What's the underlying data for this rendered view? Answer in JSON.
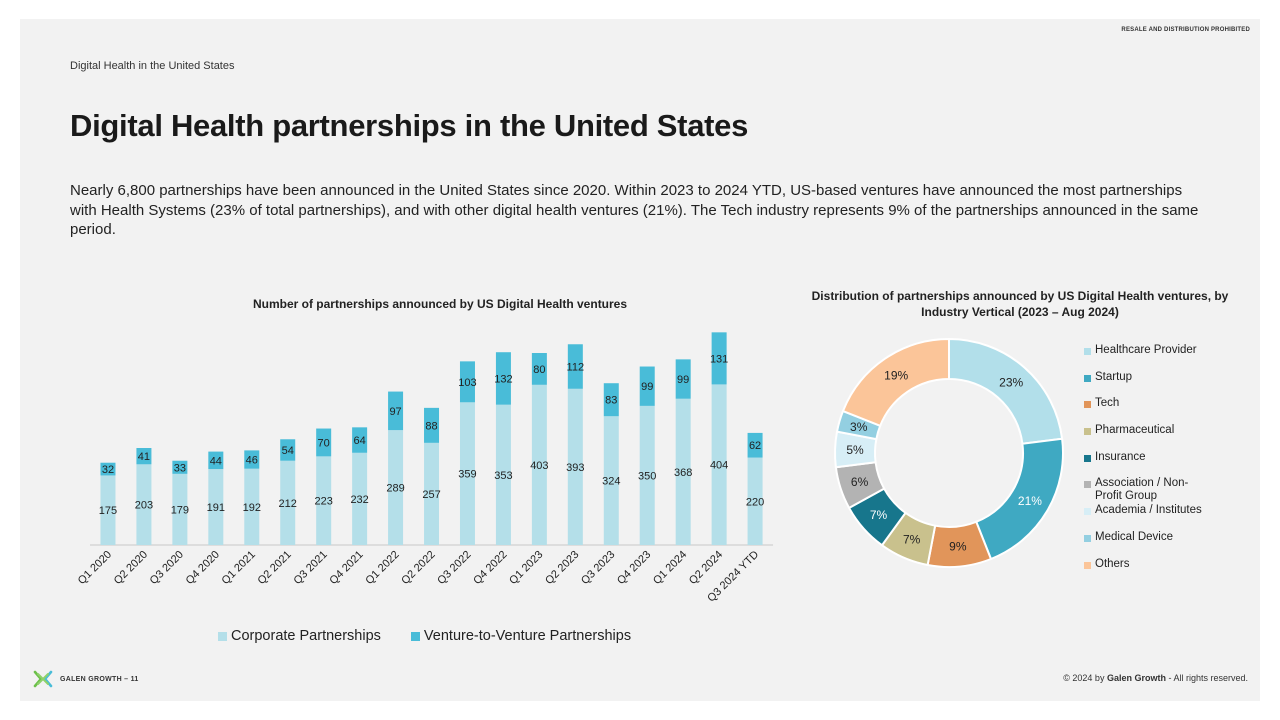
{
  "header": {
    "notice": "RESALE AND DISTRIBUTION PROHIBITED",
    "section": "Digital Health in the United States",
    "title": "Digital Health partnerships in the United States",
    "description": "Nearly 6,800 partnerships have been announced in the United States since 2020. Within 2023 to 2024 YTD, US-based ventures have announced the most partnerships with Health Systems (23% of total partnerships), and with other digital health ventures (21%). The Tech industry represents 9% of the partnerships announced in the same period."
  },
  "chart_data": [
    {
      "type": "bar",
      "stacked": true,
      "title": "Number of partnerships announced by US Digital Health ventures",
      "categories": [
        "Q1 2020",
        "Q2 2020",
        "Q3 2020",
        "Q4 2020",
        "Q1 2021",
        "Q2 2021",
        "Q3 2021",
        "Q4 2021",
        "Q1 2022",
        "Q2 2022",
        "Q3 2022",
        "Q4 2022",
        "Q1 2023",
        "Q2 2023",
        "Q3 2023",
        "Q4 2023",
        "Q1 2024",
        "Q2 2024",
        "Q3 2024 YTD"
      ],
      "series": [
        {
          "name": "Corporate Partnerships",
          "color": "#b4dfe9",
          "values": [
            175,
            203,
            179,
            191,
            192,
            212,
            223,
            232,
            289,
            257,
            359,
            353,
            403,
            393,
            324,
            350,
            368,
            404,
            220
          ]
        },
        {
          "name": "Venture-to-Venture Partnerships",
          "color": "#49bcd8",
          "values": [
            32,
            41,
            33,
            44,
            46,
            54,
            70,
            64,
            97,
            88,
            103,
            132,
            80,
            112,
            83,
            99,
            99,
            131,
            62
          ]
        }
      ],
      "legend": "bottom",
      "grid": false
    },
    {
      "type": "pie",
      "donut": true,
      "title": "Distribution of partnerships announced by US Digital Health ventures, by Industry Vertical (2023 – Aug 2024)",
      "slices": [
        {
          "label": "Healthcare Provider",
          "value": 23,
          "display": "23%",
          "color": "#b2dfea"
        },
        {
          "label": "Startup",
          "value": 21,
          "display": "21%",
          "color": "#3fa9c2"
        },
        {
          "label": "Tech",
          "value": 9,
          "display": "9%",
          "color": "#e1955a"
        },
        {
          "label": "Pharmaceutical",
          "value": 7,
          "display": "7%",
          "color": "#c9c18d"
        },
        {
          "label": "Insurance",
          "value": 7,
          "display": "7%",
          "color": "#17768c"
        },
        {
          "label": "Association / Non-Profit Group",
          "value": 6,
          "display": "6%",
          "color": "#b3b3b3"
        },
        {
          "label": "Academia / Institutes",
          "value": 5,
          "display": "5%",
          "color": "#d7eef6"
        },
        {
          "label": "Medical Device",
          "value": 3,
          "display": "3%",
          "color": "#93cfe1"
        },
        {
          "label": "Others",
          "value": 19,
          "display": "19%",
          "color": "#fbc599"
        }
      ],
      "legend": "right"
    }
  ],
  "footer": {
    "brand": "GALEN GROWTH – 11",
    "copyright_prefix": "© 2024 by ",
    "copyright_brand": "Galen Growth",
    "copyright_suffix": "  - All rights reserved.",
    "logo_icon": "galen-growth-logo-icon"
  }
}
